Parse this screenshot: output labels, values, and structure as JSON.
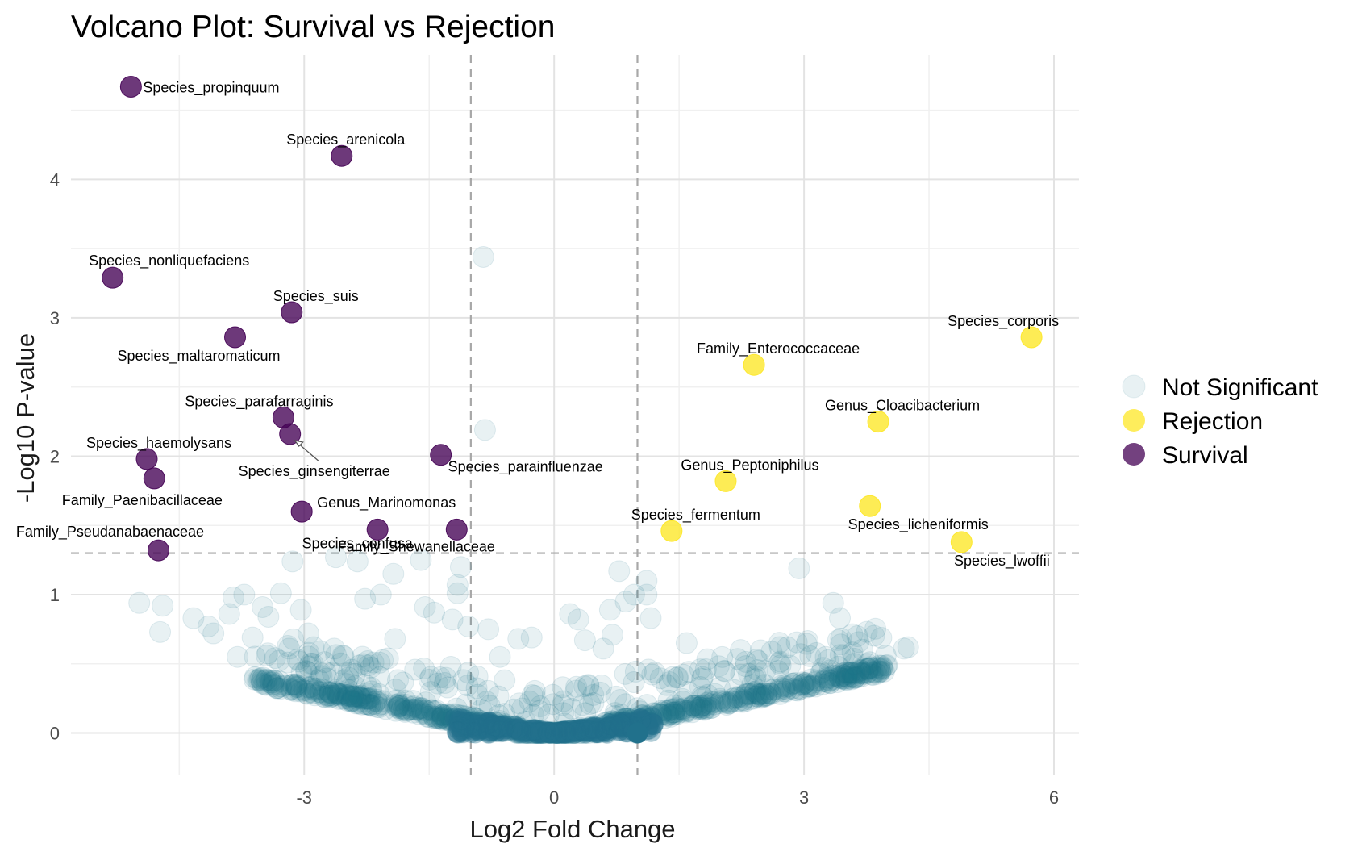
{
  "chart_data": {
    "type": "scatter",
    "title": "Volcano Plot: Survival vs Rejection",
    "xlabel": "Log2 Fold Change",
    "ylabel": "-Log10 P-value",
    "xlim": [
      -5.8,
      6.3
    ],
    "ylim": [
      -0.3,
      4.9
    ],
    "x_ticks": [
      -3,
      0,
      3,
      6
    ],
    "x_tick_labels": [
      "-3",
      "0",
      "3",
      "6"
    ],
    "y_ticks": [
      0,
      1,
      2,
      3,
      4
    ],
    "y_tick_labels": [
      "0",
      "1",
      "2",
      "3",
      "4"
    ],
    "grid": true,
    "thresholds": {
      "log2fc": [
        -1,
        1
      ],
      "neg_log10_p": 1.3
    },
    "legend": {
      "position": "right",
      "entries": [
        "Not Significant",
        "Rejection",
        "Survival"
      ]
    },
    "colors": {
      "not_significant": "#21718c",
      "rejection": "#fde725",
      "survival": "#440154"
    },
    "series": [
      {
        "name": "Survival",
        "points": [
          {
            "x": -5.08,
            "y": 4.67,
            "label": "Species_propinquum"
          },
          {
            "x": -2.55,
            "y": 4.17,
            "label": "Species_arenicola"
          },
          {
            "x": -5.3,
            "y": 3.29,
            "label": "Species_nonliquefaciens"
          },
          {
            "x": -3.15,
            "y": 3.04,
            "label": "Species_suis"
          },
          {
            "x": -3.83,
            "y": 2.86,
            "label": "Species_maltaromaticum"
          },
          {
            "x": -3.25,
            "y": 2.28,
            "label": "Species_parafarraginis"
          },
          {
            "x": -3.17,
            "y": 2.16,
            "label": "Species_ginsengiterrae"
          },
          {
            "x": -4.89,
            "y": 1.98,
            "label": "Species_haemolysans"
          },
          {
            "x": -1.36,
            "y": 2.01,
            "label": "Species_parainfluenzae"
          },
          {
            "x": -4.8,
            "y": 1.84,
            "label": "Family_Paenibacillaceae"
          },
          {
            "x": -3.03,
            "y": 1.6,
            "label": "Genus_Marinomonas"
          },
          {
            "x": -2.12,
            "y": 1.47,
            "label": "Species_confusa"
          },
          {
            "x": -1.17,
            "y": 1.47,
            "label": "Family_Shewanellaceae"
          },
          {
            "x": -4.75,
            "y": 1.32,
            "label": "Family_Pseudanabaenaceae"
          }
        ]
      },
      {
        "name": "Rejection",
        "points": [
          {
            "x": 5.73,
            "y": 2.86,
            "label": "Species_corporis"
          },
          {
            "x": 2.4,
            "y": 2.66,
            "label": "Family_Enterococcaceae"
          },
          {
            "x": 3.89,
            "y": 2.25,
            "label": "Genus_Cloacibacterium"
          },
          {
            "x": 2.06,
            "y": 1.82,
            "label": "Genus_Peptoniphilus"
          },
          {
            "x": 3.79,
            "y": 1.64,
            "label": "Species_licheniformis"
          },
          {
            "x": 1.41,
            "y": 1.46,
            "label": "Species_fermentum"
          },
          {
            "x": 4.89,
            "y": 1.38,
            "label": "Species_lwoffii"
          }
        ]
      },
      {
        "name": "Not Significant",
        "points": [
          {
            "x": -0.85,
            "y": 3.44
          },
          {
            "x": -0.83,
            "y": 2.19
          },
          {
            "x": 2.94,
            "y": 1.19
          },
          {
            "x": -3.14,
            "y": 1.24
          },
          {
            "x": -2.62,
            "y": 1.27
          },
          {
            "x": -2.36,
            "y": 1.24
          },
          {
            "x": -1.93,
            "y": 1.15
          },
          {
            "x": -1.6,
            "y": 1.25
          },
          {
            "x": -1.12,
            "y": 1.2
          },
          {
            "x": -1.16,
            "y": 1.07
          },
          {
            "x": 0.78,
            "y": 1.17
          },
          {
            "x": 1.11,
            "y": 1.1
          },
          {
            "x": -4.98,
            "y": 0.94
          },
          {
            "x": -4.7,
            "y": 0.92
          },
          {
            "x": -4.73,
            "y": 0.73
          },
          {
            "x": -4.33,
            "y": 0.83
          },
          {
            "x": -4.15,
            "y": 0.77
          },
          {
            "x": -4.09,
            "y": 0.72
          },
          {
            "x": -3.9,
            "y": 0.86
          },
          {
            "x": -3.85,
            "y": 0.98
          },
          {
            "x": -3.72,
            "y": 1.0
          },
          {
            "x": -3.8,
            "y": 0.55
          },
          {
            "x": -3.62,
            "y": 0.69
          },
          {
            "x": -3.5,
            "y": 0.91
          },
          {
            "x": -3.43,
            "y": 0.84
          },
          {
            "x": -3.28,
            "y": 1.01
          },
          {
            "x": -3.18,
            "y": 0.61
          },
          {
            "x": -3.04,
            "y": 0.89
          },
          {
            "x": -2.95,
            "y": 0.72
          },
          {
            "x": -2.64,
            "y": 0.61
          },
          {
            "x": -2.27,
            "y": 0.97
          },
          {
            "x": -2.08,
            "y": 1.0
          },
          {
            "x": -1.91,
            "y": 0.68
          },
          {
            "x": -1.55,
            "y": 0.91
          },
          {
            "x": -1.44,
            "y": 0.87
          },
          {
            "x": -1.22,
            "y": 0.82
          },
          {
            "x": -1.16,
            "y": 1.01
          },
          {
            "x": -1.03,
            "y": 0.77
          },
          {
            "x": -0.79,
            "y": 0.75
          },
          {
            "x": -0.65,
            "y": 0.55
          },
          {
            "x": -0.43,
            "y": 0.68
          },
          {
            "x": -0.27,
            "y": 0.69
          },
          {
            "x": 0.19,
            "y": 0.86
          },
          {
            "x": 0.29,
            "y": 0.82
          },
          {
            "x": 0.37,
            "y": 0.67
          },
          {
            "x": 0.59,
            "y": 0.61
          },
          {
            "x": 0.67,
            "y": 0.89
          },
          {
            "x": 0.7,
            "y": 0.71
          },
          {
            "x": 0.86,
            "y": 0.95
          },
          {
            "x": 0.96,
            "y": 1.0
          },
          {
            "x": 1.11,
            "y": 1.0
          },
          {
            "x": 1.16,
            "y": 0.83
          },
          {
            "x": 1.59,
            "y": 0.65
          },
          {
            "x": 2.24,
            "y": 0.6
          },
          {
            "x": 2.43,
            "y": 0.53
          },
          {
            "x": 2.72,
            "y": 0.49
          },
          {
            "x": 2.96,
            "y": 0.57
          },
          {
            "x": 3.26,
            "y": 0.55
          },
          {
            "x": 3.35,
            "y": 0.94
          },
          {
            "x": 3.43,
            "y": 0.83
          },
          {
            "x": 3.44,
            "y": 0.64
          },
          {
            "x": 3.6,
            "y": 0.5
          },
          {
            "x": 3.76,
            "y": 0.5
          },
          {
            "x": 3.98,
            "y": 0.56
          },
          {
            "x": 4.2,
            "y": 0.61
          },
          {
            "x": 4.25,
            "y": 0.62
          },
          {
            "x": 1.0,
            "y": 0.01
          },
          {
            "x": 0.99,
            "y": 0.0
          }
        ]
      }
    ]
  }
}
